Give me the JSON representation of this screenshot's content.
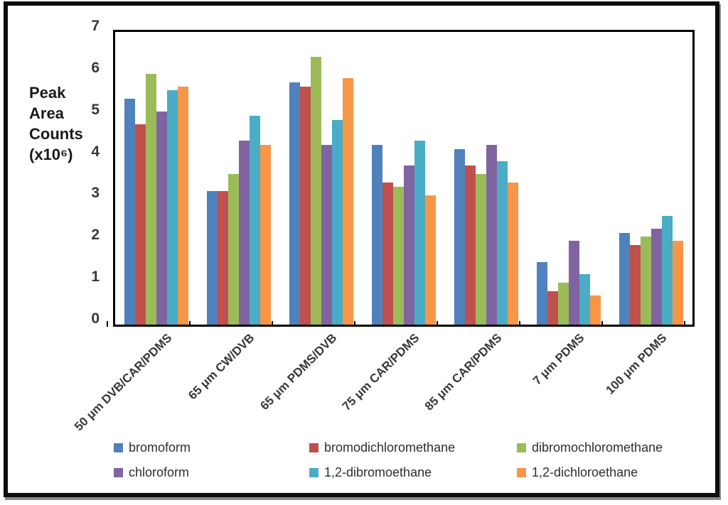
{
  "chart_data": {
    "type": "bar",
    "title": "",
    "ylabel_lines": [
      "Peak",
      "Area",
      "Counts",
      "(x10⁶)"
    ],
    "ylabel_text": "Peak Area Counts (x10⁶)",
    "ylim": [
      0,
      7
    ],
    "y_ticks": [
      0,
      1,
      2,
      3,
      4,
      5,
      6,
      7
    ],
    "grid": false,
    "legend_position": "bottom",
    "categories": [
      "50 μm DVB/CAR/PDMS",
      "65 μm CW/DVB",
      "65 μm PDMS/DVB",
      "75 μm CAR/PDMS",
      "85 μm CAR/PDMS",
      "7 μm PDMS",
      "100 μm PDMS"
    ],
    "series": [
      {
        "name": "bromoform",
        "color": "#4F81BD",
        "values": [
          5.4,
          3.2,
          5.8,
          4.3,
          4.2,
          1.5,
          2.2
        ]
      },
      {
        "name": "bromodichloromethane",
        "color": "#C0504D",
        "values": [
          4.8,
          3.2,
          5.7,
          3.4,
          3.8,
          0.8,
          1.9
        ]
      },
      {
        "name": "dibromochloromethane",
        "color": "#9BBB59",
        "values": [
          6.0,
          3.6,
          6.4,
          3.3,
          3.6,
          1.0,
          2.1
        ]
      },
      {
        "name": "chloroform",
        "color": "#8064A2",
        "values": [
          5.1,
          4.4,
          4.3,
          3.8,
          4.3,
          2.0,
          2.3
        ]
      },
      {
        "name": "1,2-dibromoethane",
        "color": "#4BACC6",
        "values": [
          5.6,
          5.0,
          4.9,
          4.4,
          3.9,
          1.2,
          2.6
        ]
      },
      {
        "name": "1,2-dichloroethane",
        "color": "#F79646",
        "values": [
          5.7,
          4.3,
          5.9,
          3.1,
          3.4,
          0.7,
          2.0
        ]
      }
    ],
    "axis_color": "#000000",
    "border_color": "#0d0d0d"
  }
}
